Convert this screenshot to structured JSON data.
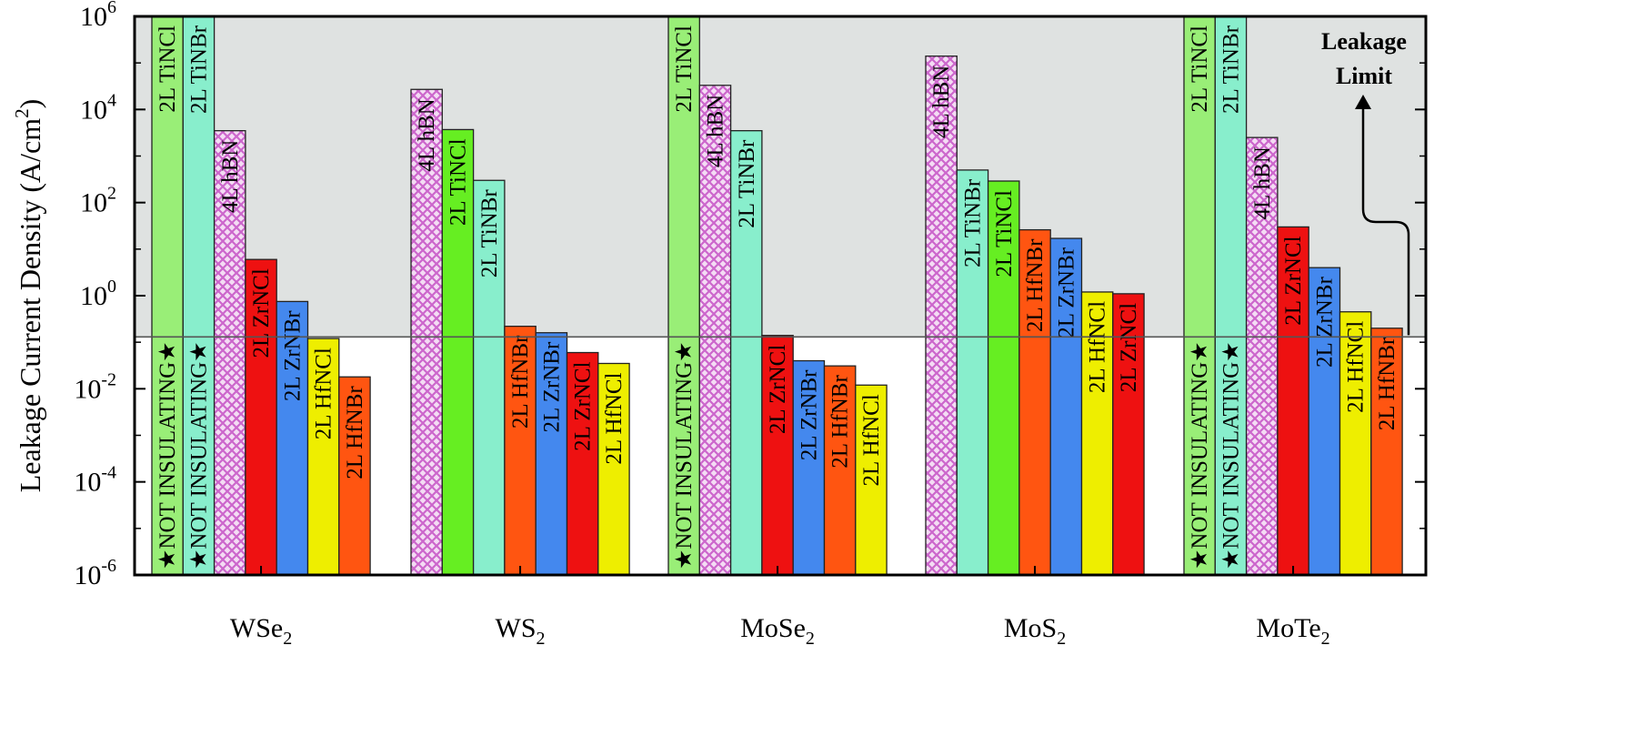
{
  "chart_data": {
    "type": "bar",
    "ylabel": "Leakage Current Density (A/cm",
    "ylabel_sup": "2",
    "ylabel_end": ")",
    "yscale": "log",
    "ylim_exp": [
      -6,
      6
    ],
    "yticks": [
      {
        "base": "10",
        "exp": "6",
        "v": 6
      },
      {
        "base": "10",
        "exp": "4",
        "v": 4
      },
      {
        "base": "10",
        "exp": "2",
        "v": 2
      },
      {
        "base": "10",
        "exp": "0",
        "v": 0
      },
      {
        "base": "10",
        "exp": "-2",
        "v": -2
      },
      {
        "base": "10",
        "exp": "-4",
        "v": -4
      },
      {
        "base": "10",
        "exp": "-6",
        "v": -6
      }
    ],
    "leakage_limit_value": 0.13,
    "annotation": [
      "Leakage",
      "Limit"
    ],
    "groups": [
      {
        "base": "WSe",
        "sub": "2",
        "bars": [
          {
            "label": "2L TiNCl",
            "value": 1000000,
            "color": "#99ee77",
            "pattern": "solid",
            "note": "★NOT INSULATING★"
          },
          {
            "label": "2L TiNBr",
            "value": 1000000,
            "color": "#88eecc",
            "pattern": "solid",
            "note": "★NOT INSULATING★"
          },
          {
            "label": "4L hBN",
            "value": 3500,
            "color": "#dd99dd",
            "pattern": "cross"
          },
          {
            "label": "2L ZrNCl",
            "value": 6,
            "color": "#ee1111",
            "pattern": "solid"
          },
          {
            "label": "2L ZrNBr",
            "value": 0.75,
            "color": "#4488ee",
            "pattern": "solid"
          },
          {
            "label": "2L HfNCl",
            "value": 0.12,
            "color": "#eeee00",
            "pattern": "solid"
          },
          {
            "label": "2L HfNBr",
            "value": 0.018,
            "color": "#ff5511",
            "pattern": "solid"
          }
        ]
      },
      {
        "base": "WS",
        "sub": "2",
        "bars": [
          {
            "label": "4L hBN",
            "value": 27000,
            "color": "#dd99dd",
            "pattern": "cross"
          },
          {
            "label": "2L TiNCl",
            "value": 3700,
            "color": "#66ee22",
            "pattern": "solid"
          },
          {
            "label": "2L TiNBr",
            "value": 300,
            "color": "#88eecc",
            "pattern": "solid"
          },
          {
            "label": "2L HfNBr",
            "value": 0.22,
            "color": "#ff5511",
            "pattern": "solid"
          },
          {
            "label": "2L ZrNBr",
            "value": 0.16,
            "color": "#4488ee",
            "pattern": "solid"
          },
          {
            "label": "2L ZrNCl",
            "value": 0.06,
            "color": "#ee1111",
            "pattern": "solid"
          },
          {
            "label": "2L HfNCl",
            "value": 0.035,
            "color": "#eeee00",
            "pattern": "solid"
          }
        ]
      },
      {
        "base": "MoSe",
        "sub": "2",
        "bars": [
          {
            "label": "2L TiNCl",
            "value": 1000000,
            "color": "#99ee77",
            "pattern": "solid",
            "note": "★NOT INSULATING★"
          },
          {
            "label": "4L hBN",
            "value": 33000,
            "color": "#dd99dd",
            "pattern": "cross"
          },
          {
            "label": "2L TiNBr",
            "value": 3500,
            "color": "#88eecc",
            "pattern": "solid"
          },
          {
            "label": "2L ZrNCl",
            "value": 0.14,
            "color": "#ee1111",
            "pattern": "solid"
          },
          {
            "label": "2L ZrNBr",
            "value": 0.04,
            "color": "#4488ee",
            "pattern": "solid"
          },
          {
            "label": "2L HfNBr",
            "value": 0.031,
            "color": "#ff5511",
            "pattern": "solid"
          },
          {
            "label": "2L HfNCl",
            "value": 0.012,
            "color": "#eeee00",
            "pattern": "solid"
          }
        ]
      },
      {
        "base": "MoS",
        "sub": "2",
        "bars": [
          {
            "label": "4L hBN",
            "value": 140000,
            "color": "#dd99dd",
            "pattern": "cross"
          },
          {
            "label": "2L TiNBr",
            "value": 500,
            "color": "#88eecc",
            "pattern": "solid"
          },
          {
            "label": "2L TiNCl",
            "value": 290,
            "color": "#66ee22",
            "pattern": "solid"
          },
          {
            "label": "2L HfNBr",
            "value": 26,
            "color": "#ff5511",
            "pattern": "solid"
          },
          {
            "label": "2L ZrNBr",
            "value": 17,
            "color": "#4488ee",
            "pattern": "solid"
          },
          {
            "label": "2L HfNCl",
            "value": 1.2,
            "color": "#eeee00",
            "pattern": "solid"
          },
          {
            "label": "2L ZrNCl",
            "value": 1.1,
            "color": "#ee1111",
            "pattern": "solid"
          }
        ]
      },
      {
        "base": "MoTe",
        "sub": "2",
        "bars": [
          {
            "label": "2L TiNCl",
            "value": 1000000,
            "color": "#99ee77",
            "pattern": "solid",
            "note": "★NOT INSULATING★"
          },
          {
            "label": "2L TiNBr",
            "value": 1000000,
            "color": "#88eecc",
            "pattern": "solid",
            "note": "★NOT INSULATING★"
          },
          {
            "label": "4L hBN",
            "value": 2500,
            "color": "#dd99dd",
            "pattern": "cross"
          },
          {
            "label": "2L ZrNCl",
            "value": 30,
            "color": "#ee1111",
            "pattern": "solid"
          },
          {
            "label": "2L ZrNBr",
            "value": 4,
            "color": "#4488ee",
            "pattern": "solid"
          },
          {
            "label": "2L HfNCl",
            "value": 0.45,
            "color": "#eeee00",
            "pattern": "solid"
          },
          {
            "label": "2L HfNBr",
            "value": 0.2,
            "color": "#ff5511",
            "pattern": "solid"
          }
        ]
      }
    ]
  }
}
